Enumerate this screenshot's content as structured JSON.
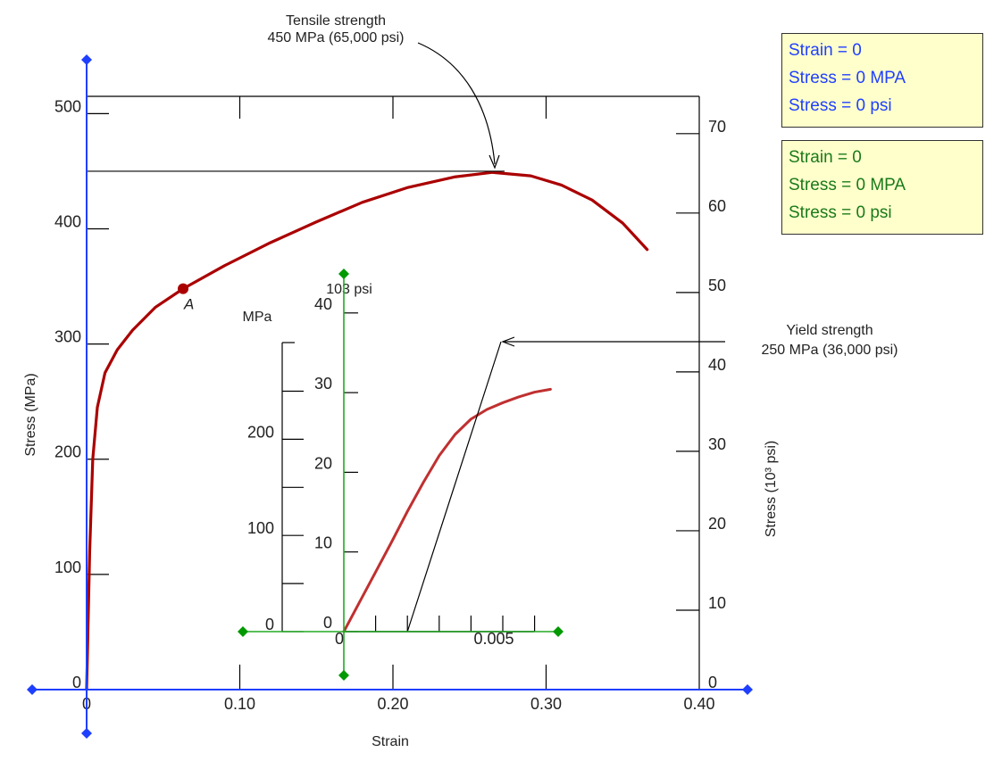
{
  "chart_data": {
    "type": "line",
    "xlabel": "Strain",
    "ylabel": "Stress (MPa)",
    "ylabel_right": "Stress (10³ psi)",
    "xlim": [
      0,
      0.4
    ],
    "ylim": [
      0,
      500
    ],
    "x_ticks": [
      "0",
      "0.10",
      "0.20",
      "0.30",
      "0.40"
    ],
    "y_ticks": [
      "0",
      "100",
      "200",
      "300",
      "400",
      "500"
    ],
    "y_ticks_right": [
      "0",
      "10",
      "20",
      "30",
      "40",
      "50",
      "60",
      "70"
    ],
    "grid": false,
    "point_label": "A",
    "point_A": {
      "x": 0.063,
      "y": 348
    },
    "series": [
      {
        "color": "#aa0000",
        "points": [
          [
            0,
            0
          ],
          [
            0.001,
            60
          ],
          [
            0.002,
            120
          ],
          [
            0.004,
            200
          ],
          [
            0.007,
            245
          ],
          [
            0.012,
            275
          ],
          [
            0.02,
            295
          ],
          [
            0.03,
            312
          ],
          [
            0.045,
            332
          ],
          [
            0.063,
            348
          ],
          [
            0.09,
            368
          ],
          [
            0.12,
            388
          ],
          [
            0.15,
            406
          ],
          [
            0.18,
            423
          ],
          [
            0.21,
            436
          ],
          [
            0.24,
            445
          ],
          [
            0.265,
            449
          ],
          [
            0.29,
            446
          ],
          [
            0.31,
            438
          ],
          [
            0.33,
            425
          ],
          [
            0.35,
            405
          ],
          [
            0.366,
            382
          ]
        ]
      }
    ],
    "annotations": {
      "tensile": {
        "line1": "Tensile strength",
        "line2": "450 MPa (65,000 psi)",
        "value_mpa": 450,
        "x": 0.265
      },
      "yield": {
        "line1": "Yield strength",
        "line2": "250 MPa (36,000 psi)"
      }
    },
    "inset": {
      "type": "line",
      "xlim": [
        0,
        0.01
      ],
      "ylim_mpa": [
        0,
        300
      ],
      "x_ticks": [
        "0",
        "0.005"
      ],
      "y_ticks_mpa": [
        "0",
        "100",
        "200"
      ],
      "y_ticks_ksi": [
        "0",
        "10",
        "20",
        "30",
        "40"
      ],
      "mpa_unit": "MPa",
      "ksi_unit": "103 psi",
      "series": [
        {
          "color": "#c03030",
          "points": [
            [
              0,
              0
            ],
            [
              0.0005,
              31
            ],
            [
              0.001,
              62
            ],
            [
              0.0015,
              93
            ],
            [
              0.002,
              125
            ],
            [
              0.0025,
              155
            ],
            [
              0.003,
              183
            ],
            [
              0.0035,
              205
            ],
            [
              0.004,
              221
            ],
            [
              0.0045,
              231
            ],
            [
              0.005,
              238
            ],
            [
              0.0055,
              244
            ],
            [
              0.006,
              249
            ],
            [
              0.0065,
              252
            ]
          ]
        }
      ]
    }
  },
  "readouts": [
    {
      "color": "#1f3fff",
      "strain": "Strain = 0",
      "stress_mpa": "Stress = 0 MPA",
      "stress_psi": "Stress = 0 psi"
    },
    {
      "color": "#1a7a1a",
      "strain": "Strain = 0",
      "stress_mpa": "Stress = 0 MPA",
      "stress_psi": "Stress = 0 psi"
    }
  ],
  "colors": {
    "axis_blue": "#1f3fff",
    "inset_green": "#22aa22",
    "handle_green": "#009900",
    "curve_red": "#aa0000",
    "inset_curve": "#c03030"
  }
}
